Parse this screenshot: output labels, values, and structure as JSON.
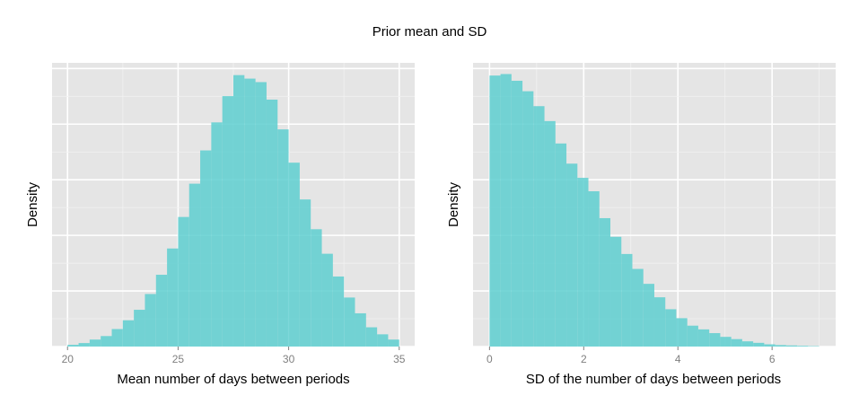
{
  "figure": {
    "title": "Prior mean and SD"
  },
  "colors": {
    "panel_bg": "#e5e5e5",
    "grid_major": "#ffffff",
    "grid_minor": "#f2f2f2",
    "bar_fill": "#5ecfd0",
    "tick_text": "#7f7f7f"
  },
  "chart_data": [
    {
      "type": "bar",
      "title": "",
      "xlabel": "Mean number of days between periods",
      "ylabel": "Density",
      "xlim": [
        19.3,
        35.7
      ],
      "ylim": [
        0,
        0.162
      ],
      "xticks": [
        "20",
        "25",
        "30",
        "35"
      ],
      "bin_start": 20.0,
      "bin_width": 0.5,
      "values": [
        0.001,
        0.002,
        0.004,
        0.006,
        0.01,
        0.015,
        0.021,
        0.03,
        0.041,
        0.056,
        0.074,
        0.093,
        0.112,
        0.128,
        0.143,
        0.155,
        0.153,
        0.151,
        0.141,
        0.124,
        0.105,
        0.084,
        0.067,
        0.053,
        0.04,
        0.028,
        0.019,
        0.011,
        0.007,
        0.004
      ]
    },
    {
      "type": "bar",
      "title": "",
      "xlabel": "SD of the number of days between periods",
      "ylabel": "Density",
      "xlim": [
        -0.35,
        7.35
      ],
      "ylim": [
        0,
        0.38
      ],
      "xticks": [
        "0",
        "2",
        "4",
        "6"
      ],
      "bin_start": 0.0,
      "bin_width": 0.2333,
      "values": [
        0.363,
        0.365,
        0.356,
        0.342,
        0.322,
        0.302,
        0.272,
        0.245,
        0.226,
        0.208,
        0.172,
        0.147,
        0.124,
        0.104,
        0.084,
        0.066,
        0.05,
        0.038,
        0.028,
        0.023,
        0.018,
        0.013,
        0.01,
        0.007,
        0.005,
        0.003,
        0.002,
        0.0015,
        0.001,
        0.0006
      ]
    }
  ]
}
